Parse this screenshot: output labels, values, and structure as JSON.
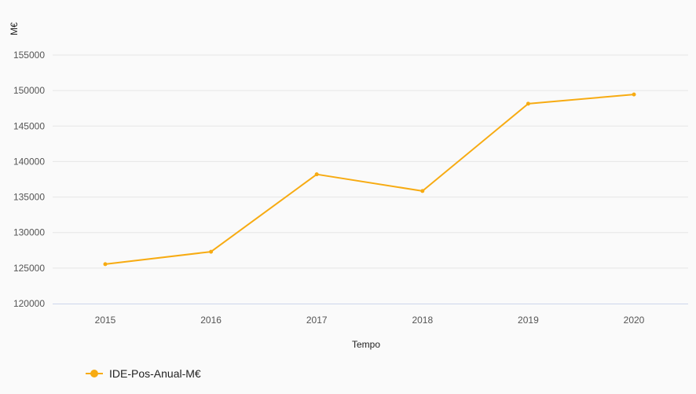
{
  "chart_data": {
    "type": "line",
    "title": "",
    "xlabel": "Tempo",
    "ylabel": "M€",
    "categories": [
      "2015",
      "2016",
      "2017",
      "2018",
      "2019",
      "2020"
    ],
    "series": [
      {
        "name": "IDE-Pos-Anual-M€",
        "color": "#f7ab12",
        "values": [
          125550,
          127300,
          138200,
          135850,
          148150,
          149450
        ]
      }
    ],
    "ylim": [
      120000,
      155000
    ],
    "yticks": [
      120000,
      125000,
      130000,
      135000,
      140000,
      145000,
      150000,
      155000
    ],
    "grid": true,
    "legend_position": "bottom-left"
  }
}
